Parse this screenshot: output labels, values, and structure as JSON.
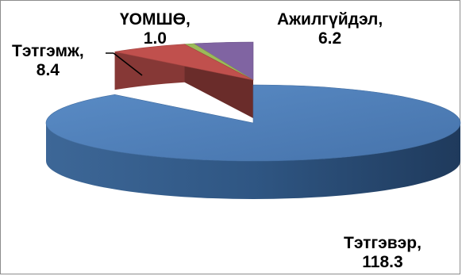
{
  "chart_data": {
    "type": "pie",
    "style": "3d-exploded",
    "slices": [
      {
        "label": "Тэтгэвэр",
        "value": 118.3,
        "color": "#4f81bd"
      },
      {
        "label": "Тэтгэмж",
        "value": 8.4,
        "color": "#c0504d"
      },
      {
        "label": "ҮОМШӨ",
        "value": 1.0,
        "color": "#9bbb59"
      },
      {
        "label": "Ажилгүйдэл",
        "value": 6.2,
        "color": "#8064a2"
      }
    ],
    "legend": "none"
  },
  "labels": {
    "pension": {
      "name": "Тэтгэвэр,",
      "value": "118.3"
    },
    "benefit": {
      "name": "Тэтгэмж,",
      "value": "8.4"
    },
    "omsho": {
      "name": "ҮОМШӨ,",
      "value": "1.0"
    },
    "unemployment": {
      "name": "Ажилгүйдэл,",
      "value": "6.2"
    }
  }
}
